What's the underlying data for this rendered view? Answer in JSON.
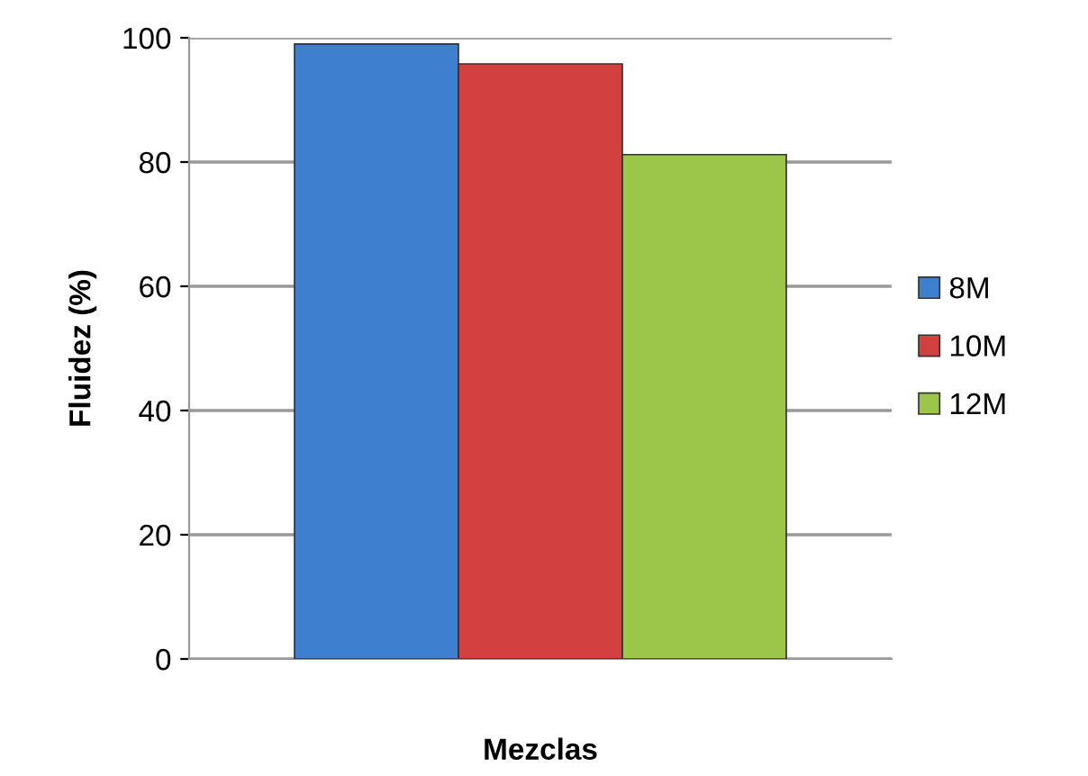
{
  "chart_data": {
    "type": "bar",
    "xlabel": "Mezclas",
    "ylabel": "Fluidez (%)",
    "categories": [
      null
    ],
    "series": [
      {
        "name": "8M",
        "color": "#3f7fd0",
        "values": [
          99
        ]
      },
      {
        "name": "10M",
        "color": "#d24140",
        "values": [
          95.8
        ]
      },
      {
        "name": "12M",
        "color": "#9bc649",
        "values": [
          81.2
        ]
      }
    ],
    "ylim": [
      0,
      100
    ],
    "yticks": [
      0,
      20,
      40,
      60,
      80,
      100
    ],
    "grid": "y",
    "legend": "right"
  }
}
